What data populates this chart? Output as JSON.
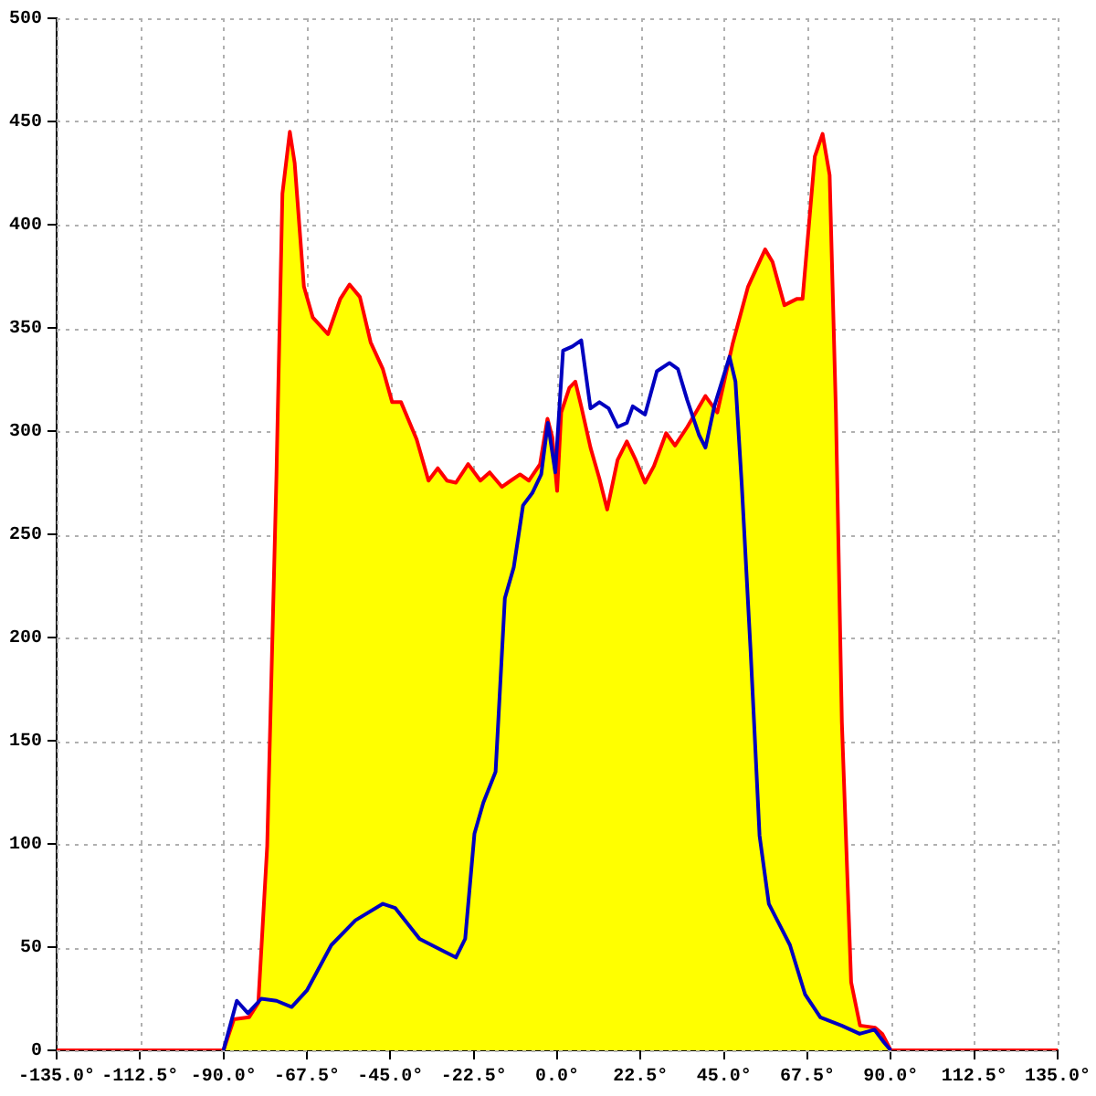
{
  "chart_data": {
    "type": "area",
    "xlim": [
      -135,
      135
    ],
    "xticks": [
      {
        "value": -135,
        "label": "-135.0°"
      },
      {
        "value": -112.5,
        "label": "-112.5°"
      },
      {
        "value": -90,
        "label": "-90.0°"
      },
      {
        "value": -67.5,
        "label": "-67.5°"
      },
      {
        "value": -45,
        "label": "-45.0°"
      },
      {
        "value": -22.5,
        "label": "-22.5°"
      },
      {
        "value": 0,
        "label": "0.0°"
      },
      {
        "value": 22.5,
        "label": "22.5°"
      },
      {
        "value": 45,
        "label": "45.0°"
      },
      {
        "value": 67.5,
        "label": "67.5°"
      },
      {
        "value": 90,
        "label": "90.0°"
      },
      {
        "value": 112.5,
        "label": "112.5°"
      },
      {
        "value": 135,
        "label": "135.0°"
      }
    ],
    "ylim": [
      0,
      500
    ],
    "yticks": [
      0,
      50,
      100,
      150,
      200,
      250,
      300,
      350,
      400,
      450,
      500
    ],
    "grid": true,
    "legend": false,
    "marker": "none",
    "line_style": "solid",
    "series": [
      {
        "color": "#ff0000",
        "x": [
          -135,
          -90,
          -87.2,
          -83.1,
          -80.6,
          -78.2,
          -75.7,
          -74.1,
          -72.1,
          -70.8,
          -68.3,
          -65.9,
          -61.8,
          -58.5,
          -56,
          -53.2,
          -50.3,
          -47,
          -44.5,
          -42.1,
          -37.9,
          -34.7,
          -32.2,
          -29.7,
          -27.3,
          -24,
          -20.7,
          -18.2,
          -14.9,
          -12.5,
          -10,
          -7.6,
          -4.6,
          -2.6,
          -1.3,
          0,
          1.1,
          3.3,
          4.9,
          6.5,
          9,
          11.4,
          13.5,
          16.3,
          18.8,
          21.2,
          23.7,
          26.1,
          29.4,
          31.8,
          35.1,
          40,
          43.2,
          47.3,
          51.5,
          56.1,
          58.1,
          61.3,
          64.6,
          66.2,
          69.5,
          71.6,
          73.5,
          75.2,
          76.8,
          79.3,
          81.7,
          85.8,
          87.7,
          90,
          135
        ],
        "values": [
          0,
          0,
          15,
          16,
          23,
          99,
          279,
          415,
          445,
          430,
          370,
          355,
          347,
          364,
          371,
          365,
          343,
          330,
          314,
          314,
          296,
          276,
          282,
          276,
          275,
          284,
          276,
          280,
          273,
          276,
          279,
          276,
          284,
          306,
          297,
          271,
          309,
          321,
          324,
          312,
          292,
          277,
          262,
          286,
          295,
          286,
          275,
          283,
          299,
          293,
          302,
          317,
          309,
          342,
          370,
          388,
          382,
          361,
          364,
          364,
          433,
          444,
          424,
          309,
          159,
          33,
          12,
          11,
          8,
          0,
          0
        ]
      },
      {
        "type": "line",
        "color": "#0000c0",
        "x": [
          -90,
          -86.4,
          -83.4,
          -79.8,
          -75.7,
          -71.6,
          -67.5,
          -60.9,
          -54.4,
          -47,
          -43.7,
          -37.1,
          -30.6,
          -27.3,
          -24.8,
          -22.3,
          -19.9,
          -16.6,
          -14.1,
          -11.7,
          -9.2,
          -6.7,
          -4.3,
          -2.5,
          -0.5,
          1.6,
          4.1,
          6.5,
          9,
          11.4,
          13.9,
          16.3,
          18.8,
          20.4,
          23.7,
          26.9,
          30.3,
          32.6,
          35.1,
          38.3,
          40,
          42.4,
          46.5,
          48.1,
          49.8,
          52.2,
          54.6,
          57.1,
          62.8,
          66.9,
          71,
          76.7,
          81.6,
          85.6,
          88.1,
          90
        ],
        "values": [
          0,
          24,
          18,
          25,
          24,
          21,
          29,
          51,
          63,
          71,
          69,
          54,
          48,
          45,
          54,
          105,
          120,
          135,
          219,
          234,
          264,
          270,
          279,
          304,
          280,
          339,
          341,
          344,
          311,
          314,
          311,
          302,
          304,
          312,
          308,
          329,
          333,
          330,
          315,
          298,
          292,
          312,
          336,
          324,
          274,
          193,
          104,
          71,
          51,
          27,
          16,
          12,
          8,
          10,
          4,
          0
        ]
      }
    ]
  }
}
